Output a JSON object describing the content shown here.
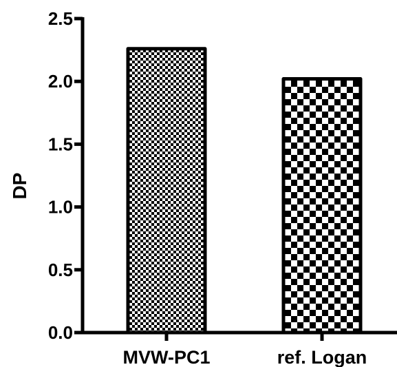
{
  "chart_data": {
    "type": "bar",
    "categories": [
      "MVW-PC1",
      "ref. Logan"
    ],
    "values": [
      2.26,
      2.02
    ],
    "title": "",
    "xlabel": "",
    "ylabel": "DP",
    "ylim": [
      0,
      2.5
    ],
    "yticks": [
      0.0,
      0.5,
      1.0,
      1.5,
      2.0,
      2.5
    ],
    "ytick_labels": [
      "0.0",
      "0.5",
      "1.0",
      "1.5",
      "2.0",
      "2.5"
    ],
    "grid": false,
    "legend": "none",
    "bar_patterns": [
      "fine-checkerboard",
      "coarse-checkerboard"
    ],
    "colors": {
      "bar_outline": "#000000",
      "pattern_dark": "#000000",
      "pattern_light": "#ffffff",
      "background": "#ffffff"
    }
  }
}
